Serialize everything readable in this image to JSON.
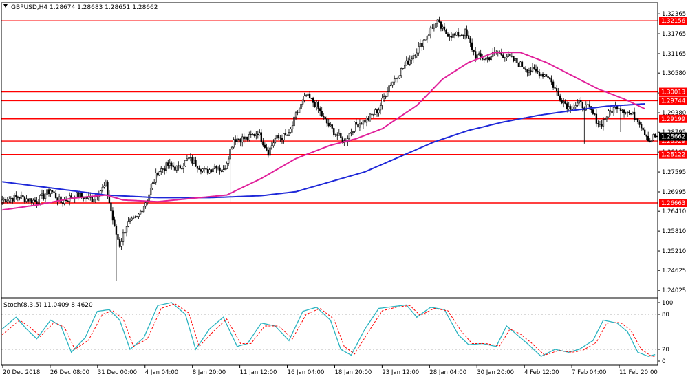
{
  "main_header": "GBPUSD,H4  1.28674 1.28683 1.28651 1.28662",
  "stoch_header": "Stoch(8,3,5) 11.0409 8.4620",
  "colors": {
    "background": "#ffffff",
    "bull_candle": "#ffffff",
    "bear_candle": "#000000",
    "level_line": "#ff0000",
    "level_tag_bg": "#ff0000",
    "level_tag_text": "#ffffff",
    "ma_fast": "#e0209a",
    "ma_slow": "#1e28d8",
    "stoch_main": "#2ab3c0",
    "stoch_signal": "#ff0000",
    "grid_axis": "#000000"
  },
  "chart_data": [
    {
      "type": "candlestick",
      "symbol": "GBPUSD",
      "timeframe": "H4",
      "ohlc_last": {
        "open": 1.28674,
        "high": 1.28683,
        "low": 1.28651,
        "close": 1.28662
      },
      "ylim": [
        1.238,
        1.327
      ],
      "price_ticks": [
        "1.32365",
        "1.31765",
        "1.31165",
        "1.30580",
        "1.29980",
        "1.29380",
        "1.28795",
        "1.28195",
        "1.27595",
        "1.26995",
        "1.26410",
        "1.25810",
        "1.25210",
        "1.24625",
        "1.24025"
      ],
      "horizontal_levels": [
        "1.32156",
        "1.30013",
        "1.29744",
        "1.29199",
        "1.28529",
        "1.28122",
        "1.26663"
      ],
      "current_price_label": "1.28662",
      "time_labels": [
        "20 Dec 2018",
        "26 Dec 08:00",
        "31 Dec 00:00",
        "4 Jan 04:00",
        "8 Jan 20:00",
        "11 Jan 12:00",
        "16 Jan 04:00",
        "18 Jan 20:00",
        "23 Jan 12:00",
        "28 Jan 04:00",
        "30 Jan 20:00",
        "4 Feb 12:00",
        "7 Feb 04:00",
        "11 Feb 20:00"
      ],
      "price_anchors": [
        [
          0,
          1.2675
        ],
        [
          10,
          1.2685
        ],
        [
          20,
          1.267
        ],
        [
          28,
          1.2705
        ],
        [
          34,
          1.2668
        ],
        [
          42,
          1.269
        ],
        [
          52,
          1.2678
        ],
        [
          60,
          1.272
        ],
        [
          65,
          1.259
        ],
        [
          68,
          1.254
        ],
        [
          72,
          1.26
        ],
        [
          78,
          1.262
        ],
        [
          84,
          1.268
        ],
        [
          90,
          1.276
        ],
        [
          96,
          1.278
        ],
        [
          102,
          1.277
        ],
        [
          108,
          1.28
        ],
        [
          113,
          1.278
        ],
        [
          118,
          1.276
        ],
        [
          124,
          1.278
        ],
        [
          128,
          1.276
        ],
        [
          134,
          1.286
        ],
        [
          142,
          1.286
        ],
        [
          148,
          1.288
        ],
        [
          154,
          1.282
        ],
        [
          158,
          1.286
        ],
        [
          166,
          1.287
        ],
        [
          170,
          1.293
        ],
        [
          176,
          1.299
        ],
        [
          182,
          1.296
        ],
        [
          186,
          1.292
        ],
        [
          192,
          1.288
        ],
        [
          198,
          1.285
        ],
        [
          204,
          1.29
        ],
        [
          212,
          1.292
        ],
        [
          218,
          1.295
        ],
        [
          224,
          1.302
        ],
        [
          230,
          1.306
        ],
        [
          236,
          1.31
        ],
        [
          242,
          1.314
        ],
        [
          248,
          1.319
        ],
        [
          252,
          1.321
        ],
        [
          256,
          1.318
        ],
        [
          262,
          1.317
        ],
        [
          268,
          1.318
        ],
        [
          274,
          1.311
        ],
        [
          280,
          1.31
        ],
        [
          286,
          1.312
        ],
        [
          292,
          1.311
        ],
        [
          298,
          1.309
        ],
        [
          304,
          1.307
        ],
        [
          310,
          1.306
        ],
        [
          316,
          1.305
        ],
        [
          322,
          1.299
        ],
        [
          328,
          1.2955
        ],
        [
          334,
          1.2965
        ],
        [
          340,
          1.295
        ],
        [
          346,
          1.29
        ],
        [
          350,
          1.293
        ],
        [
          356,
          1.296
        ],
        [
          362,
          1.294
        ],
        [
          368,
          1.292
        ],
        [
          372,
          1.288
        ],
        [
          375,
          1.2853
        ],
        [
          377,
          1.2866
        ]
      ],
      "ma_fast_anchors": [
        [
          0,
          1.2645
        ],
        [
          20,
          1.266
        ],
        [
          40,
          1.268
        ],
        [
          60,
          1.269
        ],
        [
          70,
          1.2675
        ],
        [
          90,
          1.267
        ],
        [
          110,
          1.268
        ],
        [
          130,
          1.269
        ],
        [
          150,
          1.274
        ],
        [
          170,
          1.28
        ],
        [
          190,
          1.284
        ],
        [
          205,
          1.286
        ],
        [
          220,
          1.289
        ],
        [
          240,
          1.296
        ],
        [
          255,
          1.304
        ],
        [
          270,
          1.309
        ],
        [
          285,
          1.312
        ],
        [
          300,
          1.312
        ],
        [
          315,
          1.309
        ],
        [
          330,
          1.305
        ],
        [
          345,
          1.301
        ],
        [
          360,
          1.298
        ],
        [
          372,
          1.295
        ]
      ],
      "ma_slow_anchors": [
        [
          0,
          1.273
        ],
        [
          30,
          1.271
        ],
        [
          60,
          1.269
        ],
        [
          90,
          1.2682
        ],
        [
          120,
          1.2682
        ],
        [
          150,
          1.2688
        ],
        [
          170,
          1.27
        ],
        [
          190,
          1.273
        ],
        [
          210,
          1.276
        ],
        [
          230,
          1.2805
        ],
        [
          250,
          1.285
        ],
        [
          270,
          1.2885
        ],
        [
          290,
          1.291
        ],
        [
          310,
          1.293
        ],
        [
          330,
          1.2945
        ],
        [
          350,
          1.2958
        ],
        [
          372,
          1.2965
        ]
      ]
    },
    {
      "type": "line",
      "indicator": "Stochastic Oscillator",
      "params": "8,3,5",
      "main_value": 11.0409,
      "signal_value": 8.462,
      "ylim": [
        0,
        100
      ],
      "levels": [
        20,
        80
      ],
      "axis_ticks": [
        "100",
        "80",
        "20",
        "0"
      ],
      "main_anchors": [
        [
          0,
          55
        ],
        [
          8,
          75
        ],
        [
          14,
          55
        ],
        [
          20,
          38
        ],
        [
          28,
          70
        ],
        [
          34,
          60
        ],
        [
          40,
          15
        ],
        [
          48,
          40
        ],
        [
          55,
          85
        ],
        [
          62,
          88
        ],
        [
          68,
          70
        ],
        [
          74,
          20
        ],
        [
          82,
          40
        ],
        [
          90,
          95
        ],
        [
          98,
          100
        ],
        [
          106,
          80
        ],
        [
          112,
          20
        ],
        [
          120,
          55
        ],
        [
          128,
          75
        ],
        [
          136,
          25
        ],
        [
          142,
          30
        ],
        [
          150,
          65
        ],
        [
          158,
          60
        ],
        [
          166,
          35
        ],
        [
          174,
          85
        ],
        [
          182,
          92
        ],
        [
          190,
          70
        ],
        [
          196,
          20
        ],
        [
          202,
          10
        ],
        [
          210,
          55
        ],
        [
          218,
          90
        ],
        [
          226,
          93
        ],
        [
          234,
          96
        ],
        [
          240,
          75
        ],
        [
          248,
          92
        ],
        [
          256,
          88
        ],
        [
          264,
          45
        ],
        [
          270,
          28
        ],
        [
          278,
          30
        ],
        [
          286,
          25
        ],
        [
          292,
          60
        ],
        [
          298,
          45
        ],
        [
          304,
          30
        ],
        [
          312,
          8
        ],
        [
          320,
          20
        ],
        [
          328,
          15
        ],
        [
          334,
          20
        ],
        [
          342,
          35
        ],
        [
          348,
          70
        ],
        [
          356,
          65
        ],
        [
          362,
          50
        ],
        [
          368,
          15
        ],
        [
          374,
          8
        ],
        [
          378,
          11
        ]
      ],
      "signal_anchors": [
        [
          0,
          45
        ],
        [
          10,
          70
        ],
        [
          16,
          58
        ],
        [
          22,
          42
        ],
        [
          30,
          66
        ],
        [
          36,
          58
        ],
        [
          42,
          20
        ],
        [
          50,
          36
        ],
        [
          58,
          80
        ],
        [
          64,
          86
        ],
        [
          70,
          72
        ],
        [
          76,
          25
        ],
        [
          84,
          38
        ],
        [
          92,
          90
        ],
        [
          100,
          98
        ],
        [
          108,
          82
        ],
        [
          114,
          25
        ],
        [
          122,
          50
        ],
        [
          130,
          72
        ],
        [
          138,
          30
        ],
        [
          144,
          30
        ],
        [
          152,
          60
        ],
        [
          160,
          60
        ],
        [
          168,
          38
        ],
        [
          176,
          80
        ],
        [
          184,
          90
        ],
        [
          192,
          72
        ],
        [
          198,
          25
        ],
        [
          204,
          12
        ],
        [
          212,
          50
        ],
        [
          220,
          86
        ],
        [
          228,
          92
        ],
        [
          236,
          95
        ],
        [
          242,
          78
        ],
        [
          250,
          90
        ],
        [
          258,
          86
        ],
        [
          266,
          50
        ],
        [
          272,
          30
        ],
        [
          280,
          30
        ],
        [
          288,
          26
        ],
        [
          294,
          55
        ],
        [
          300,
          46
        ],
        [
          306,
          32
        ],
        [
          314,
          10
        ],
        [
          322,
          18
        ],
        [
          330,
          15
        ],
        [
          336,
          18
        ],
        [
          344,
          32
        ],
        [
          350,
          65
        ],
        [
          358,
          66
        ],
        [
          364,
          52
        ],
        [
          370,
          20
        ],
        [
          376,
          8
        ],
        [
          378,
          8.5
        ]
      ]
    }
  ]
}
